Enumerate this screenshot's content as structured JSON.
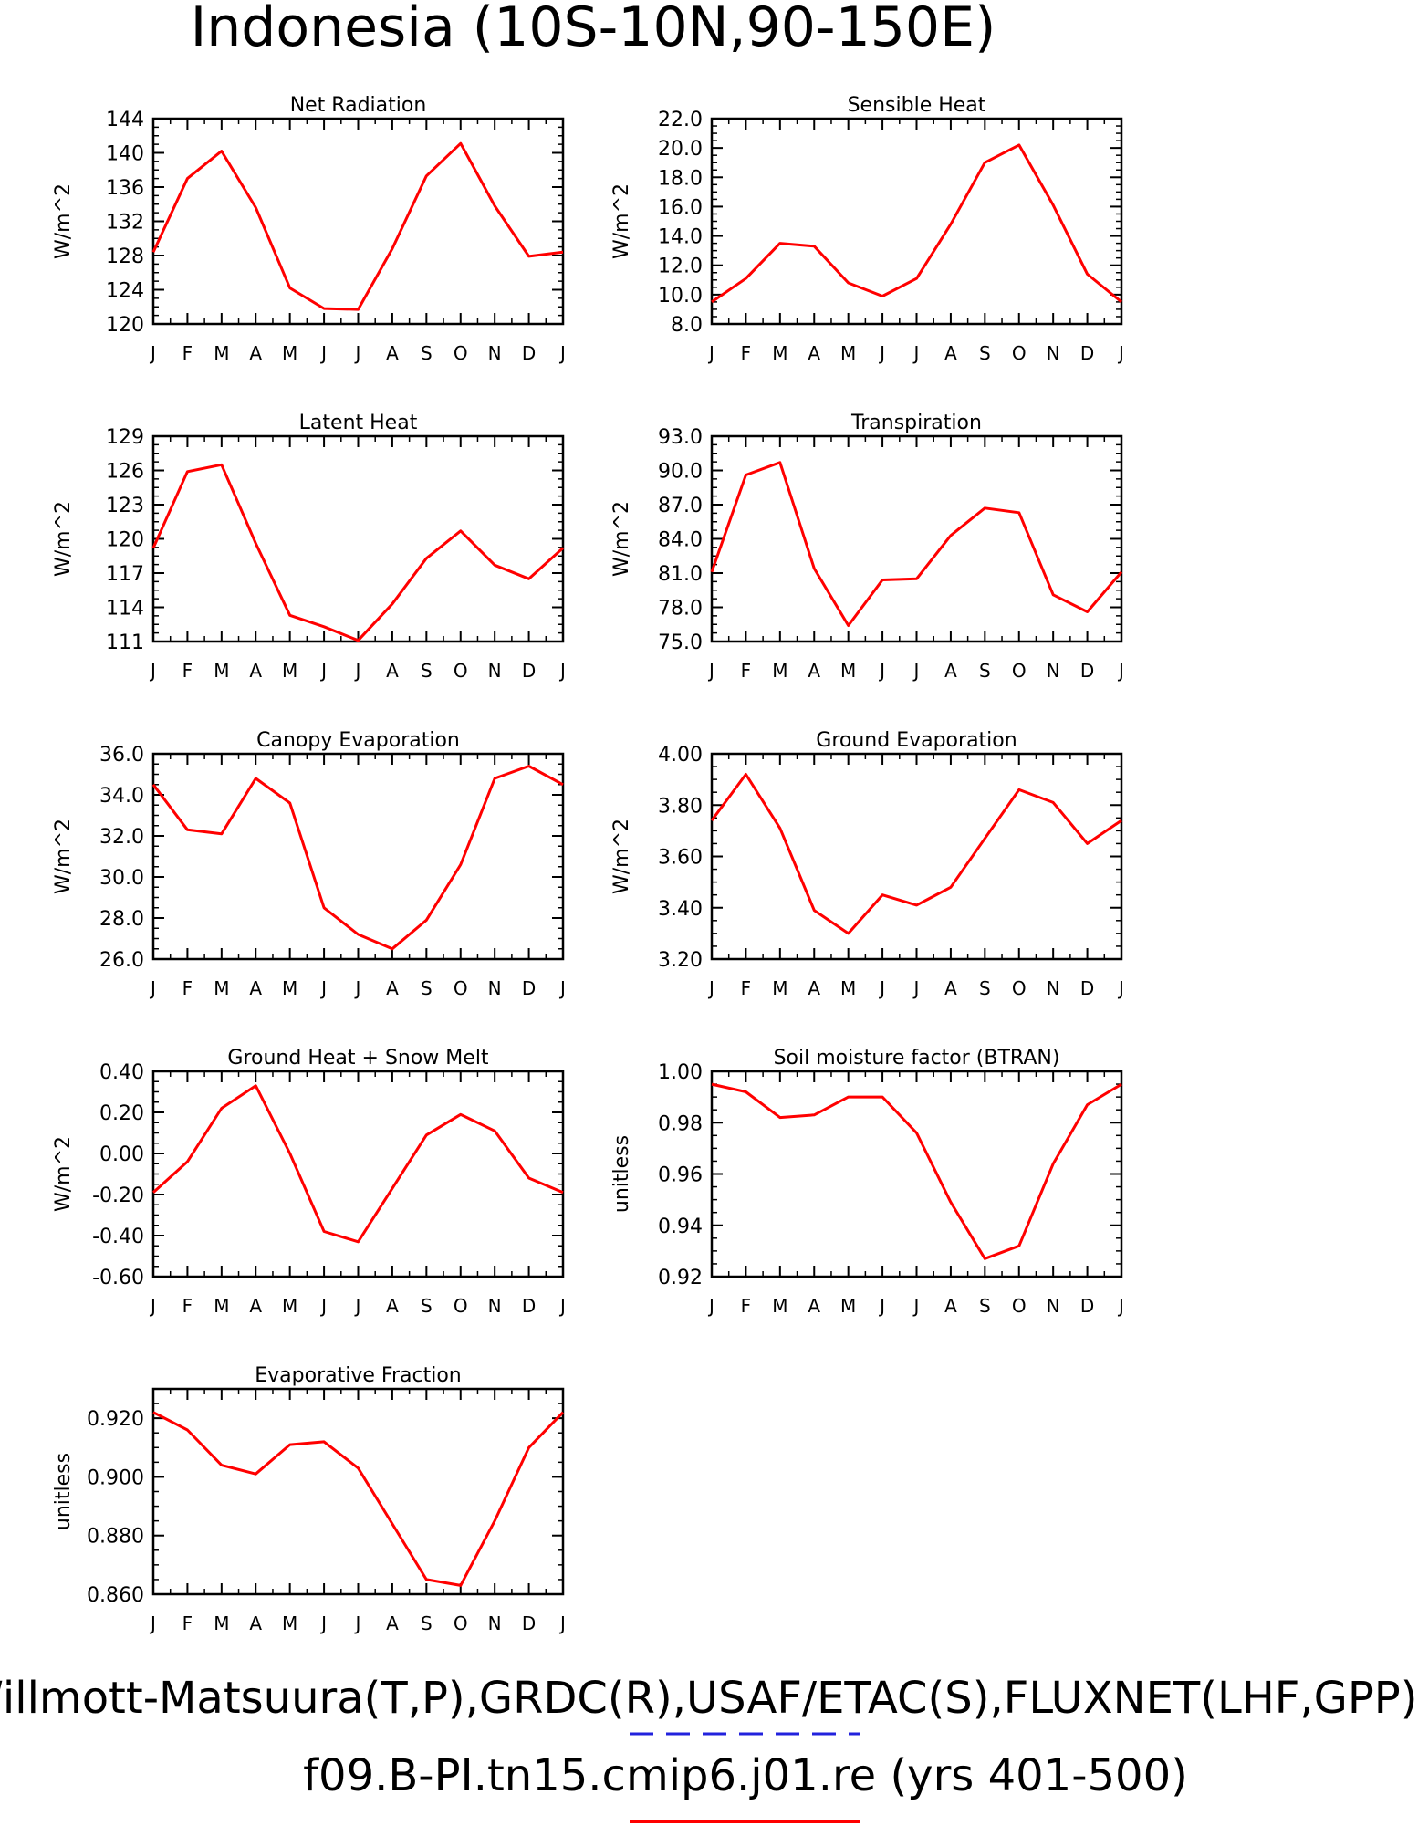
{
  "page_title": "Indonesia (10S-10N,90-150E)",
  "footer": {
    "obs_line": "Willmott-Matsuura(T,P),GRDC(R),USAF/ETAC(S),FLUXNET(LHF,GPP)",
    "case_line": "f09.B-PI.tn15.cmip6.j01.re (yrs 401-500)",
    "obs_line_color": "#2222dd",
    "case_line_color": "#ff0000"
  },
  "colors": {
    "series": "#ff0000",
    "axis": "#000000"
  },
  "chart_data": [
    {
      "type": "line",
      "title": "Net Radiation",
      "ylabel": "W/m^2",
      "x": [
        "J",
        "F",
        "M",
        "A",
        "M",
        "J",
        "J",
        "A",
        "S",
        "O",
        "N",
        "D",
        "J"
      ],
      "ylim": [
        120,
        144
      ],
      "yticks": [
        "120",
        "124",
        "128",
        "132",
        "136",
        "140",
        "144"
      ],
      "series": [
        {
          "values": [
            128.4,
            137.0,
            140.2,
            133.6,
            124.2,
            121.8,
            121.7,
            128.8,
            137.3,
            141.1,
            133.8,
            127.9,
            128.4
          ]
        }
      ]
    },
    {
      "type": "line",
      "title": "Sensible Heat",
      "ylabel": "W/m^2",
      "x": [
        "J",
        "F",
        "M",
        "A",
        "M",
        "J",
        "J",
        "A",
        "S",
        "O",
        "N",
        "D",
        "J"
      ],
      "ylim": [
        8.0,
        22.0
      ],
      "yticks": [
        "8.0",
        "10.0",
        "12.0",
        "14.0",
        "16.0",
        "18.0",
        "20.0",
        "22.0"
      ],
      "series": [
        {
          "values": [
            9.5,
            11.1,
            13.5,
            13.3,
            10.8,
            9.9,
            11.1,
            14.8,
            19.0,
            20.2,
            16.1,
            11.4,
            9.5
          ]
        }
      ]
    },
    {
      "type": "line",
      "title": "Latent Heat",
      "ylabel": "W/m^2",
      "x": [
        "J",
        "F",
        "M",
        "A",
        "M",
        "J",
        "J",
        "A",
        "S",
        "O",
        "N",
        "D",
        "J"
      ],
      "ylim": [
        111,
        129
      ],
      "yticks": [
        "111",
        "114",
        "117",
        "120",
        "123",
        "126",
        "129"
      ],
      "series": [
        {
          "values": [
            119.2,
            125.9,
            126.5,
            119.6,
            113.3,
            112.3,
            111.1,
            114.3,
            118.3,
            120.7,
            117.7,
            116.5,
            119.2
          ]
        }
      ]
    },
    {
      "type": "line",
      "title": "Transpiration",
      "ylabel": "W/m^2",
      "x": [
        "J",
        "F",
        "M",
        "A",
        "M",
        "J",
        "J",
        "A",
        "S",
        "O",
        "N",
        "D",
        "J"
      ],
      "ylim": [
        75.0,
        93.0
      ],
      "yticks": [
        "75.0",
        "78.0",
        "81.0",
        "84.0",
        "87.0",
        "90.0",
        "93.0"
      ],
      "series": [
        {
          "values": [
            81.1,
            89.6,
            90.7,
            81.4,
            76.4,
            80.4,
            80.5,
            84.3,
            86.7,
            86.3,
            79.1,
            77.6,
            81.1
          ]
        }
      ]
    },
    {
      "type": "line",
      "title": "Canopy Evaporation",
      "ylabel": "W/m^2",
      "x": [
        "J",
        "F",
        "M",
        "A",
        "M",
        "J",
        "J",
        "A",
        "S",
        "O",
        "N",
        "D",
        "J"
      ],
      "ylim": [
        26.0,
        36.0
      ],
      "yticks": [
        "26.0",
        "28.0",
        "30.0",
        "32.0",
        "34.0",
        "36.0"
      ],
      "series": [
        {
          "values": [
            34.5,
            32.3,
            32.1,
            34.8,
            33.6,
            28.5,
            27.2,
            26.5,
            27.9,
            30.6,
            34.8,
            35.4,
            34.5
          ]
        }
      ]
    },
    {
      "type": "line",
      "title": "Ground Evaporation",
      "ylabel": "W/m^2",
      "x": [
        "J",
        "F",
        "M",
        "A",
        "M",
        "J",
        "J",
        "A",
        "S",
        "O",
        "N",
        "D",
        "J"
      ],
      "ylim": [
        3.2,
        4.0
      ],
      "yticks": [
        "3.20",
        "3.40",
        "3.60",
        "3.80",
        "4.00"
      ],
      "series": [
        {
          "values": [
            3.74,
            3.92,
            3.71,
            3.39,
            3.3,
            3.45,
            3.41,
            3.48,
            3.67,
            3.86,
            3.81,
            3.65,
            3.74
          ]
        }
      ]
    },
    {
      "type": "line",
      "title": "Ground Heat + Snow Melt",
      "ylabel": "W/m^2",
      "x": [
        "J",
        "F",
        "M",
        "A",
        "M",
        "J",
        "J",
        "A",
        "S",
        "O",
        "N",
        "D",
        "J"
      ],
      "ylim": [
        -0.6,
        0.4
      ],
      "yticks": [
        "-0.60",
        "-0.40",
        "-0.20",
        "0.00",
        "0.20",
        "0.40"
      ],
      "series": [
        {
          "values": [
            -0.19,
            -0.04,
            0.22,
            0.33,
            0.0,
            -0.38,
            -0.43,
            -0.17,
            0.09,
            0.19,
            0.11,
            -0.12,
            -0.19
          ]
        }
      ]
    },
    {
      "type": "line",
      "title": "Soil moisture factor (BTRAN)",
      "ylabel": "unitless",
      "x": [
        "J",
        "F",
        "M",
        "A",
        "M",
        "J",
        "J",
        "A",
        "S",
        "O",
        "N",
        "D",
        "J"
      ],
      "ylim": [
        0.92,
        1.0
      ],
      "yticks": [
        "0.92",
        "0.94",
        "0.96",
        "0.98",
        "1.00"
      ],
      "series": [
        {
          "values": [
            0.995,
            0.992,
            0.982,
            0.983,
            0.99,
            0.99,
            0.976,
            0.949,
            0.927,
            0.932,
            0.964,
            0.987,
            0.995
          ]
        }
      ]
    },
    {
      "type": "line",
      "title": "Evaporative Fraction",
      "ylabel": "unitless",
      "x": [
        "J",
        "F",
        "M",
        "A",
        "M",
        "J",
        "J",
        "A",
        "S",
        "O",
        "N",
        "D",
        "J"
      ],
      "ylim": [
        0.86,
        0.93
      ],
      "yticks": [
        "0.860",
        "0.880",
        "0.900",
        "0.920"
      ],
      "series": [
        {
          "values": [
            0.922,
            0.916,
            0.904,
            0.901,
            0.911,
            0.912,
            0.903,
            0.884,
            0.865,
            0.863,
            0.885,
            0.91,
            0.922
          ]
        }
      ]
    }
  ]
}
